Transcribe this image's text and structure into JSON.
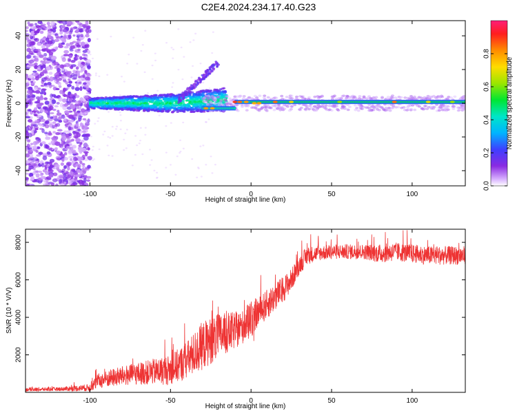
{
  "title": "C2E4.2024.234.17.40.G23",
  "chart_data": [
    {
      "type": "heatmap",
      "xlabel": "Height of straight line (km)",
      "ylabel": "Frequency (Hz)",
      "xlim": [
        -140,
        133
      ],
      "ylim": [
        -49,
        49
      ],
      "x_ticks": [
        -100,
        -50,
        0,
        50,
        100
      ],
      "x_tick_labels": [
        "-100",
        "-50",
        "0",
        "50",
        "100"
      ],
      "y_ticks": [
        -40,
        -20,
        0,
        20,
        40
      ],
      "y_tick_labels": [
        "-40",
        "-20",
        "0",
        "20",
        "40"
      ],
      "colorbar": {
        "label": "Normalized spectral amplitude",
        "range": [
          0,
          1
        ],
        "ticks": [
          0.0,
          0.2,
          0.4,
          0.6,
          0.8
        ],
        "tick_labels": [
          "0.0",
          "0.2",
          "0.4",
          "0.6",
          "0.8"
        ],
        "colormap": "rainbow (white → purple → blue → cyan → green → yellow → orange → red → magenta)"
      },
      "description_of_structure": "Broadband noise (-140 to -100 km); low-frequency signal line near 0 Hz from -100 km to 133 km, widening toward center; sloping branch rising to ~25 Hz near -22 km."
    },
    {
      "type": "line",
      "xlabel": "Height of straight line (km)",
      "ylabel": "SNR (10 * V/V)",
      "xlim": [
        -140,
        133
      ],
      "ylim": [
        0,
        8700
      ],
      "x_ticks": [
        -100,
        -50,
        0,
        50,
        100
      ],
      "x_tick_labels": [
        "-100",
        "-50",
        "0",
        "50",
        "100"
      ],
      "y_ticks": [
        2000,
        4000,
        6000,
        8000
      ],
      "y_tick_labels": [
        "2000",
        "4000",
        "6000",
        "8000"
      ],
      "series": [
        {
          "color": "#ee3333",
          "envelope_x": [
            -140,
            -120,
            -100,
            -95,
            -85,
            -70,
            -60,
            -50,
            -40,
            -30,
            -20,
            -10,
            -5,
            0,
            5,
            10,
            20,
            25,
            30,
            35,
            40,
            50,
            60,
            70,
            80,
            90,
            100,
            110,
            120,
            133
          ],
          "envelope_mean": [
            150,
            170,
            250,
            600,
            800,
            1000,
            1100,
            1200,
            1700,
            2500,
            3000,
            3300,
            3500,
            4000,
            4300,
            4700,
            5500,
            6000,
            6800,
            7300,
            7400,
            7500,
            7500,
            7500,
            7400,
            7500,
            7400,
            7300,
            7300,
            7300
          ],
          "envelope_spread": [
            100,
            100,
            200,
            400,
            500,
            600,
            700,
            800,
            1000,
            1300,
            1200,
            1000,
            900,
            900,
            800,
            800,
            700,
            600,
            500,
            500,
            400,
            400,
            400,
            400,
            500,
            500,
            500,
            500,
            500,
            500
          ]
        }
      ]
    }
  ]
}
